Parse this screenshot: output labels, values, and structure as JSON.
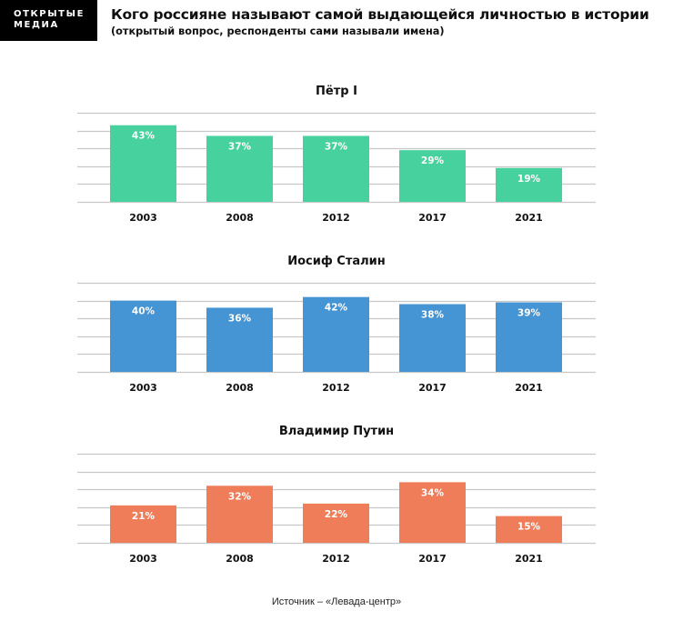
{
  "brand": {
    "line1": "ОТКРЫТЫЕ",
    "line2": "МЕДИА"
  },
  "header": {
    "title": "Кого россияне называют самой выдающейся личностью в истории",
    "subtitle": "(открытый вопрос, респонденты сами называли имена)"
  },
  "footer": {
    "source": "Источник – «Левада-центр»"
  },
  "chart_data": [
    {
      "type": "bar",
      "title": "Пётр I",
      "categories": [
        "2003",
        "2008",
        "2012",
        "2017",
        "2021"
      ],
      "values": [
        43,
        37,
        37,
        29,
        19
      ],
      "data_labels": [
        "43%",
        "37%",
        "37%",
        "29%",
        "19%"
      ],
      "color": "#46D19E",
      "xlabel": "",
      "ylabel": "",
      "ylim": [
        0,
        50
      ],
      "grid": true,
      "gridlines": [
        0,
        10,
        20,
        30,
        40,
        50
      ],
      "unit": "%"
    },
    {
      "type": "bar",
      "title": "Иосиф Сталин",
      "categories": [
        "2003",
        "2008",
        "2012",
        "2017",
        "2021"
      ],
      "values": [
        40,
        36,
        42,
        38,
        39
      ],
      "data_labels": [
        "40%",
        "36%",
        "42%",
        "38%",
        "39%"
      ],
      "color": "#4594D4",
      "xlabel": "",
      "ylabel": "",
      "ylim": [
        0,
        50
      ],
      "grid": true,
      "gridlines": [
        0,
        10,
        20,
        30,
        40,
        50
      ],
      "unit": "%"
    },
    {
      "type": "bar",
      "title": "Владимир Путин",
      "categories": [
        "2003",
        "2008",
        "2012",
        "2017",
        "2021"
      ],
      "values": [
        21,
        32,
        22,
        34,
        15
      ],
      "data_labels": [
        "21%",
        "32%",
        "22%",
        "34%",
        "15%"
      ],
      "color": "#F07D59",
      "xlabel": "",
      "ylabel": "",
      "ylim": [
        0,
        50
      ],
      "grid": true,
      "gridlines": [
        0,
        10,
        20,
        30,
        40,
        50
      ],
      "unit": "%"
    }
  ]
}
